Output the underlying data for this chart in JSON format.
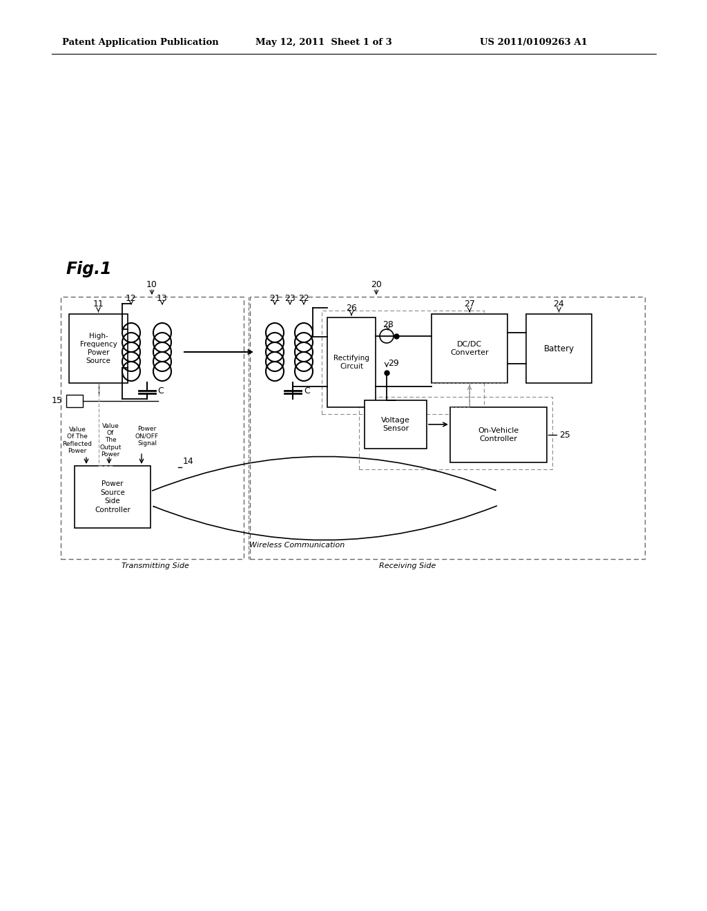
{
  "header_left": "Patent Application Publication",
  "header_mid": "May 12, 2011  Sheet 1 of 3",
  "header_right": "US 2011/0109263 A1",
  "fig_label": "Fig.1",
  "bg_color": "#ffffff",
  "line_color": "#000000",
  "dashed_color": "#666666"
}
